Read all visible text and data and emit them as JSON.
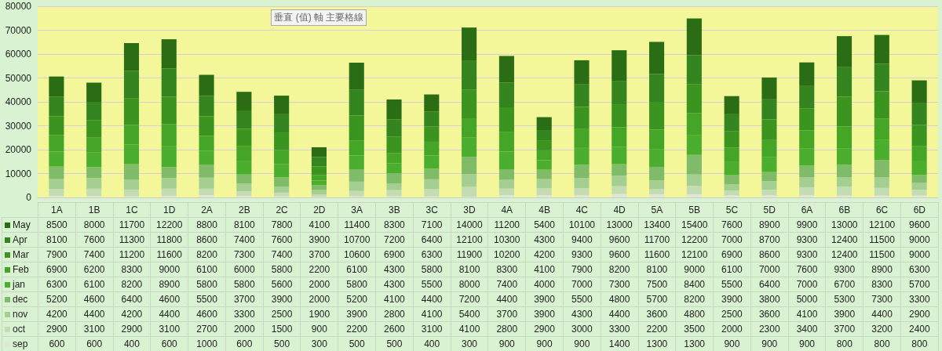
{
  "chart_data": {
    "type": "bar",
    "stacked": true,
    "data_labels": true,
    "grid": "y",
    "legend": "bottom",
    "categories": [
      "1A",
      "1B",
      "1C",
      "1D",
      "2A",
      "2B",
      "2C",
      "2D",
      "3A",
      "3B",
      "3C",
      "3D",
      "4A",
      "4B",
      "4C",
      "4D",
      "5A",
      "5B",
      "5C",
      "5D",
      "6A",
      "6B",
      "6C",
      "6D"
    ],
    "ylim": [
      0,
      80000
    ],
    "yticks": [
      0,
      10000,
      20000,
      30000,
      40000,
      50000,
      60000,
      70000,
      80000
    ],
    "annotations": [
      "垂直 (值) 軸 主要格線"
    ],
    "series": [
      {
        "name": "sep",
        "color": "#dfe8d6",
        "values": [
          600,
          600,
          400,
          600,
          1000,
          600,
          500,
          300,
          500,
          500,
          400,
          300,
          900,
          900,
          900,
          1400,
          1300,
          1300,
          900,
          900,
          900,
          800,
          800,
          800
        ]
      },
      {
        "name": "oct",
        "color": "#c3dcb4",
        "values": [
          2900,
          3100,
          2900,
          3100,
          2700,
          2000,
          1500,
          900,
          2200,
          2600,
          3100,
          4100,
          2800,
          2900,
          3000,
          3300,
          2200,
          3500,
          2000,
          2300,
          3400,
          3700,
          3200,
          2400
        ]
      },
      {
        "name": "nov",
        "color": "#a5cf92",
        "values": [
          4200,
          4400,
          4200,
          4400,
          4600,
          3300,
          2500,
          1900,
          3900,
          2800,
          4100,
          5400,
          3700,
          3900,
          4300,
          4400,
          3600,
          4800,
          2500,
          3600,
          4100,
          3900,
          4400,
          2900
        ]
      },
      {
        "name": "dec",
        "color": "#7fbb68",
        "values": [
          5200,
          4600,
          6400,
          4600,
          5500,
          3700,
          3900,
          2000,
          5200,
          4100,
          4400,
          7200,
          4400,
          3900,
          5500,
          4800,
          5700,
          8200,
          3900,
          3800,
          5000,
          5300,
          7300,
          3300
        ]
      },
      {
        "name": "jan",
        "color": "#4cae2e",
        "values": [
          6300,
          6100,
          8200,
          8900,
          5800,
          5800,
          5600,
          2000,
          5800,
          4300,
          5500,
          8000,
          7400,
          4000,
          7000,
          7300,
          7500,
          8400,
          5500,
          6400,
          7000,
          6700,
          8300,
          5700
        ]
      },
      {
        "name": "Feb",
        "color": "#44a526",
        "values": [
          6900,
          6200,
          8300,
          9000,
          6100,
          6000,
          5800,
          2200,
          6100,
          4300,
          5800,
          8100,
          8300,
          4100,
          7900,
          8200,
          8100,
          9000,
          6100,
          7000,
          7600,
          9300,
          8900,
          6300
        ]
      },
      {
        "name": "Mar",
        "color": "#3b9320",
        "values": [
          7900,
          7400,
          11200,
          11600,
          8200,
          7300,
          7400,
          3700,
          10600,
          6900,
          6300,
          11900,
          10200,
          4200,
          9300,
          9600,
          11600,
          12100,
          6900,
          8600,
          9300,
          12400,
          11500,
          9000
        ]
      },
      {
        "name": "Apr",
        "color": "#348520",
        "values": [
          8100,
          7600,
          11300,
          11800,
          8600,
          7400,
          7600,
          3900,
          10700,
          7200,
          6400,
          12100,
          10300,
          4300,
          9400,
          9600,
          11700,
          12200,
          7000,
          8700,
          9300,
          12400,
          11500,
          9000
        ]
      },
      {
        "name": "May",
        "color": "#2a6d14",
        "values": [
          8500,
          8000,
          11700,
          12200,
          8800,
          8100,
          7800,
          4100,
          11400,
          8300,
          7100,
          14000,
          11200,
          5400,
          10100,
          13000,
          13400,
          15400,
          7600,
          8900,
          9900,
          13000,
          12100,
          9600
        ]
      }
    ]
  }
}
